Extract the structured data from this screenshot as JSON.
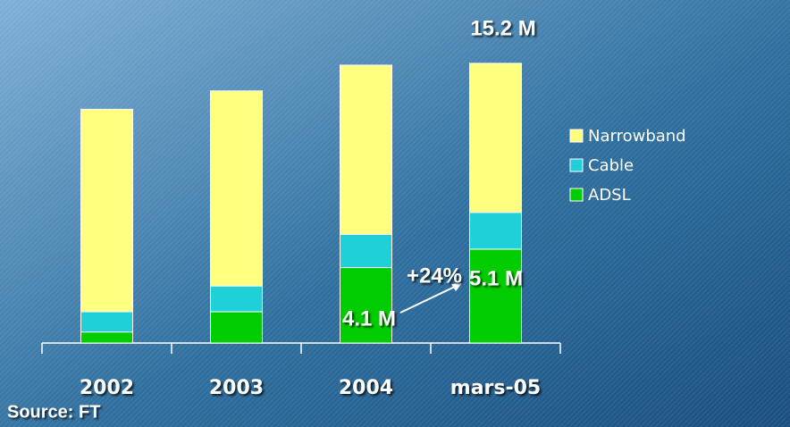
{
  "chart_data": {
    "type": "stacked_bar",
    "categories": [
      "2002",
      "2003",
      "2004",
      "mars-05"
    ],
    "series": [
      {
        "name": "ADSL",
        "color": "#00cc00",
        "values": [
          0.6,
          1.7,
          4.1,
          5.1
        ],
        "value_labels": [
          null,
          null,
          "4.1 M",
          "5.1 M"
        ]
      },
      {
        "name": "Cable",
        "color": "#1fd0d8",
        "values": [
          1.1,
          1.4,
          1.8,
          2.0
        ]
      },
      {
        "name": "Narrowband",
        "color": "#ffff80",
        "values": [
          11.0,
          10.6,
          9.2,
          8.1
        ]
      }
    ],
    "ylim": [
      0,
      16
    ],
    "legend": "right",
    "annotations": [
      {
        "text": "15.2 M"
      },
      {
        "text": "+24%"
      }
    ],
    "source": "Source: FT"
  }
}
